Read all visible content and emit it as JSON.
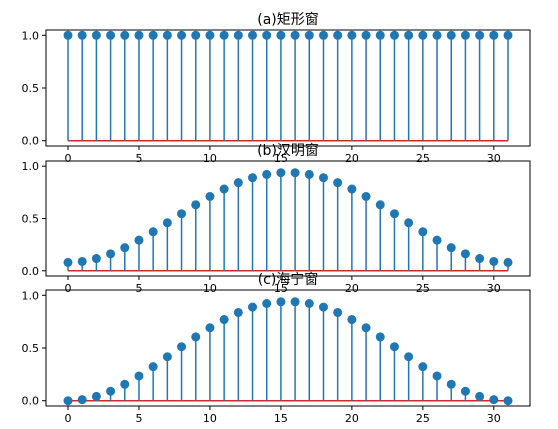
{
  "colors": {
    "stem": "#1f77b4",
    "marker": "#1f77b4",
    "baseline": "#d62728",
    "axis": "#000000"
  },
  "chart_data": [
    {
      "type": "stem",
      "title": "(a)矩形窗",
      "xlabel": "",
      "ylabel": "",
      "xlim": [
        -1.55,
        32.55
      ],
      "ylim": [
        -0.05,
        1.05
      ],
      "x_ticks": [
        0,
        5,
        10,
        15,
        20,
        25,
        30
      ],
      "y_ticks": [
        0.0,
        0.5,
        1.0
      ],
      "x_tick_labels": [
        "0",
        "5",
        "10",
        "15",
        "20",
        "25",
        "30"
      ],
      "y_tick_labels": [
        "0.0",
        "0.5",
        "1.0"
      ],
      "x": [
        0,
        1,
        2,
        3,
        4,
        5,
        6,
        7,
        8,
        9,
        10,
        11,
        12,
        13,
        14,
        15,
        16,
        17,
        18,
        19,
        20,
        21,
        22,
        23,
        24,
        25,
        26,
        27,
        28,
        29,
        30,
        31
      ],
      "values": [
        1,
        1,
        1,
        1,
        1,
        1,
        1,
        1,
        1,
        1,
        1,
        1,
        1,
        1,
        1,
        1,
        1,
        1,
        1,
        1,
        1,
        1,
        1,
        1,
        1,
        1,
        1,
        1,
        1,
        1,
        1,
        1
      ],
      "baseline": 0
    },
    {
      "type": "stem",
      "title": "(b)汉明窗",
      "xlabel": "",
      "ylabel": "",
      "xlim": [
        -1.55,
        32.55
      ],
      "ylim": [
        -0.05,
        1.05
      ],
      "x_ticks": [
        0,
        5,
        10,
        15,
        20,
        25,
        30
      ],
      "y_ticks": [
        0.0,
        0.5,
        1.0
      ],
      "x_tick_labels": [
        "0",
        "5",
        "10",
        "15",
        "20",
        "25",
        "30"
      ],
      "y_tick_labels": [
        "0.0",
        "0.5",
        "1.0"
      ],
      "x": [
        0,
        1,
        2,
        3,
        4,
        5,
        6,
        7,
        8,
        9,
        10,
        11,
        12,
        13,
        14,
        15,
        16,
        17,
        18,
        19,
        20,
        21,
        22,
        23,
        24,
        25,
        26,
        27,
        28,
        29,
        30,
        31
      ],
      "values": [
        0.08,
        0.089,
        0.117,
        0.162,
        0.221,
        0.293,
        0.373,
        0.459,
        0.546,
        0.631,
        0.711,
        0.782,
        0.843,
        0.89,
        0.922,
        0.938,
        0.938,
        0.922,
        0.89,
        0.843,
        0.782,
        0.711,
        0.631,
        0.546,
        0.459,
        0.373,
        0.293,
        0.221,
        0.162,
        0.117,
        0.089,
        0.08
      ],
      "baseline": 0
    },
    {
      "type": "stem",
      "title": "(c)海宁窗",
      "xlabel": "",
      "ylabel": "",
      "xlim": [
        -1.55,
        32.55
      ],
      "ylim": [
        -0.05,
        1.05
      ],
      "x_ticks": [
        0,
        5,
        10,
        15,
        20,
        25,
        30
      ],
      "y_ticks": [
        0.0,
        0.5,
        1.0
      ],
      "x_tick_labels": [
        "0",
        "5",
        "10",
        "15",
        "20",
        "25",
        "30"
      ],
      "y_tick_labels": [
        "0.0",
        "0.5",
        "1.0"
      ],
      "x": [
        0,
        1,
        2,
        3,
        4,
        5,
        6,
        7,
        8,
        9,
        10,
        11,
        12,
        13,
        14,
        15,
        16,
        17,
        18,
        19,
        20,
        21,
        22,
        23,
        24,
        25,
        26,
        27,
        28,
        29,
        30,
        31
      ],
      "values": [
        0.0,
        0.01,
        0.041,
        0.09,
        0.156,
        0.235,
        0.323,
        0.417,
        0.512,
        0.605,
        0.692,
        0.77,
        0.837,
        0.888,
        0.922,
        0.938,
        0.938,
        0.922,
        0.888,
        0.837,
        0.77,
        0.692,
        0.605,
        0.512,
        0.417,
        0.323,
        0.235,
        0.156,
        0.09,
        0.041,
        0.01,
        0.0
      ],
      "baseline": 0
    }
  ]
}
